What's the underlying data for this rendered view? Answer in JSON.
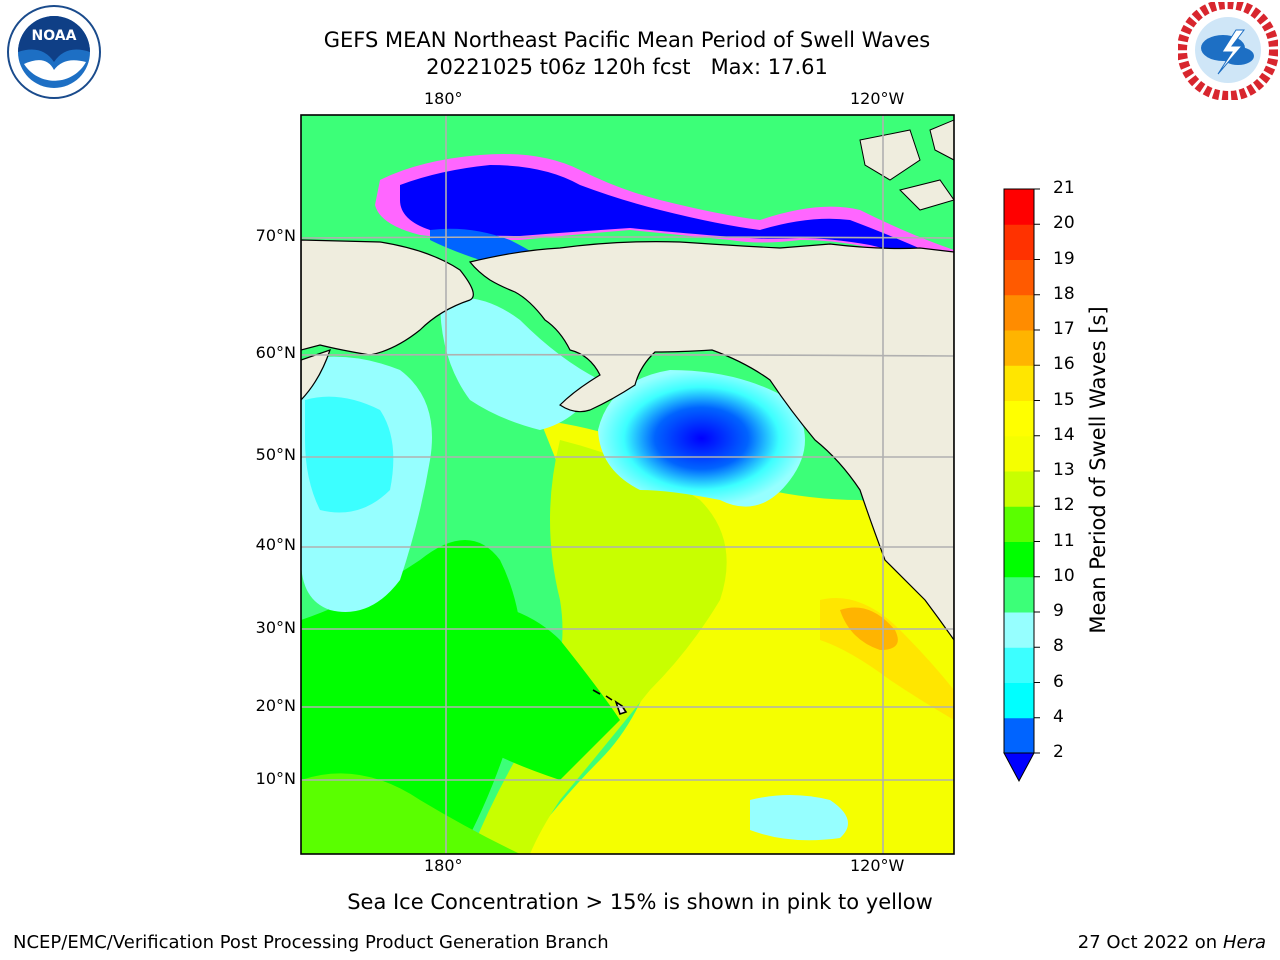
{
  "title": {
    "line1": "GEFS MEAN Northeast Pacific Mean Period of Swell Waves",
    "line2": "20221025 t06z 120h fcst   Max: 17.61"
  },
  "logos": {
    "left": {
      "text": "NOAA",
      "ring_text": "NATIONAL OCEANIC AND ATMOSPHERIC ADMINISTRATION · U.S. DEPARTMENT OF COMMERCE"
    },
    "right": {
      "ring_text": "NATIONAL WEATHER SERVICE"
    }
  },
  "map": {
    "lon_labels": {
      "left": "180°",
      "right": "120°W"
    },
    "lat_labels": [
      "70°N",
      "60°N",
      "50°N",
      "40°N",
      "30°N",
      "20°N",
      "10°N"
    ],
    "colors": {
      "land": "#efedde",
      "grid": "#b0b0b0",
      "coast": "#000000"
    }
  },
  "colorbar": {
    "label": "Mean Period of Swell Waves [s]",
    "ticks": [
      "2",
      "4",
      "6",
      "8",
      "9",
      "10",
      "11",
      "12",
      "13",
      "14",
      "15",
      "16",
      "17",
      "18",
      "19",
      "20",
      "21"
    ],
    "colors": [
      "#0000ff",
      "#0064ff",
      "#00ffff",
      "#3cffff",
      "#96ffff",
      "#3cff78",
      "#00ff00",
      "#5aff00",
      "#c8ff00",
      "#f5ff00",
      "#ffff00",
      "#ffe600",
      "#ffb400",
      "#ff8c00",
      "#ff5a00",
      "#ff3200",
      "#ff0000"
    ],
    "under_color": "#0000ff"
  },
  "note": "Sea Ice Concentration > 15% is shown in pink to yellow",
  "footer": {
    "left": "NCEP/EMC/Verification Post Processing Product Generation Branch",
    "date": "27 Oct 2022 on ",
    "machine": "Hera"
  }
}
